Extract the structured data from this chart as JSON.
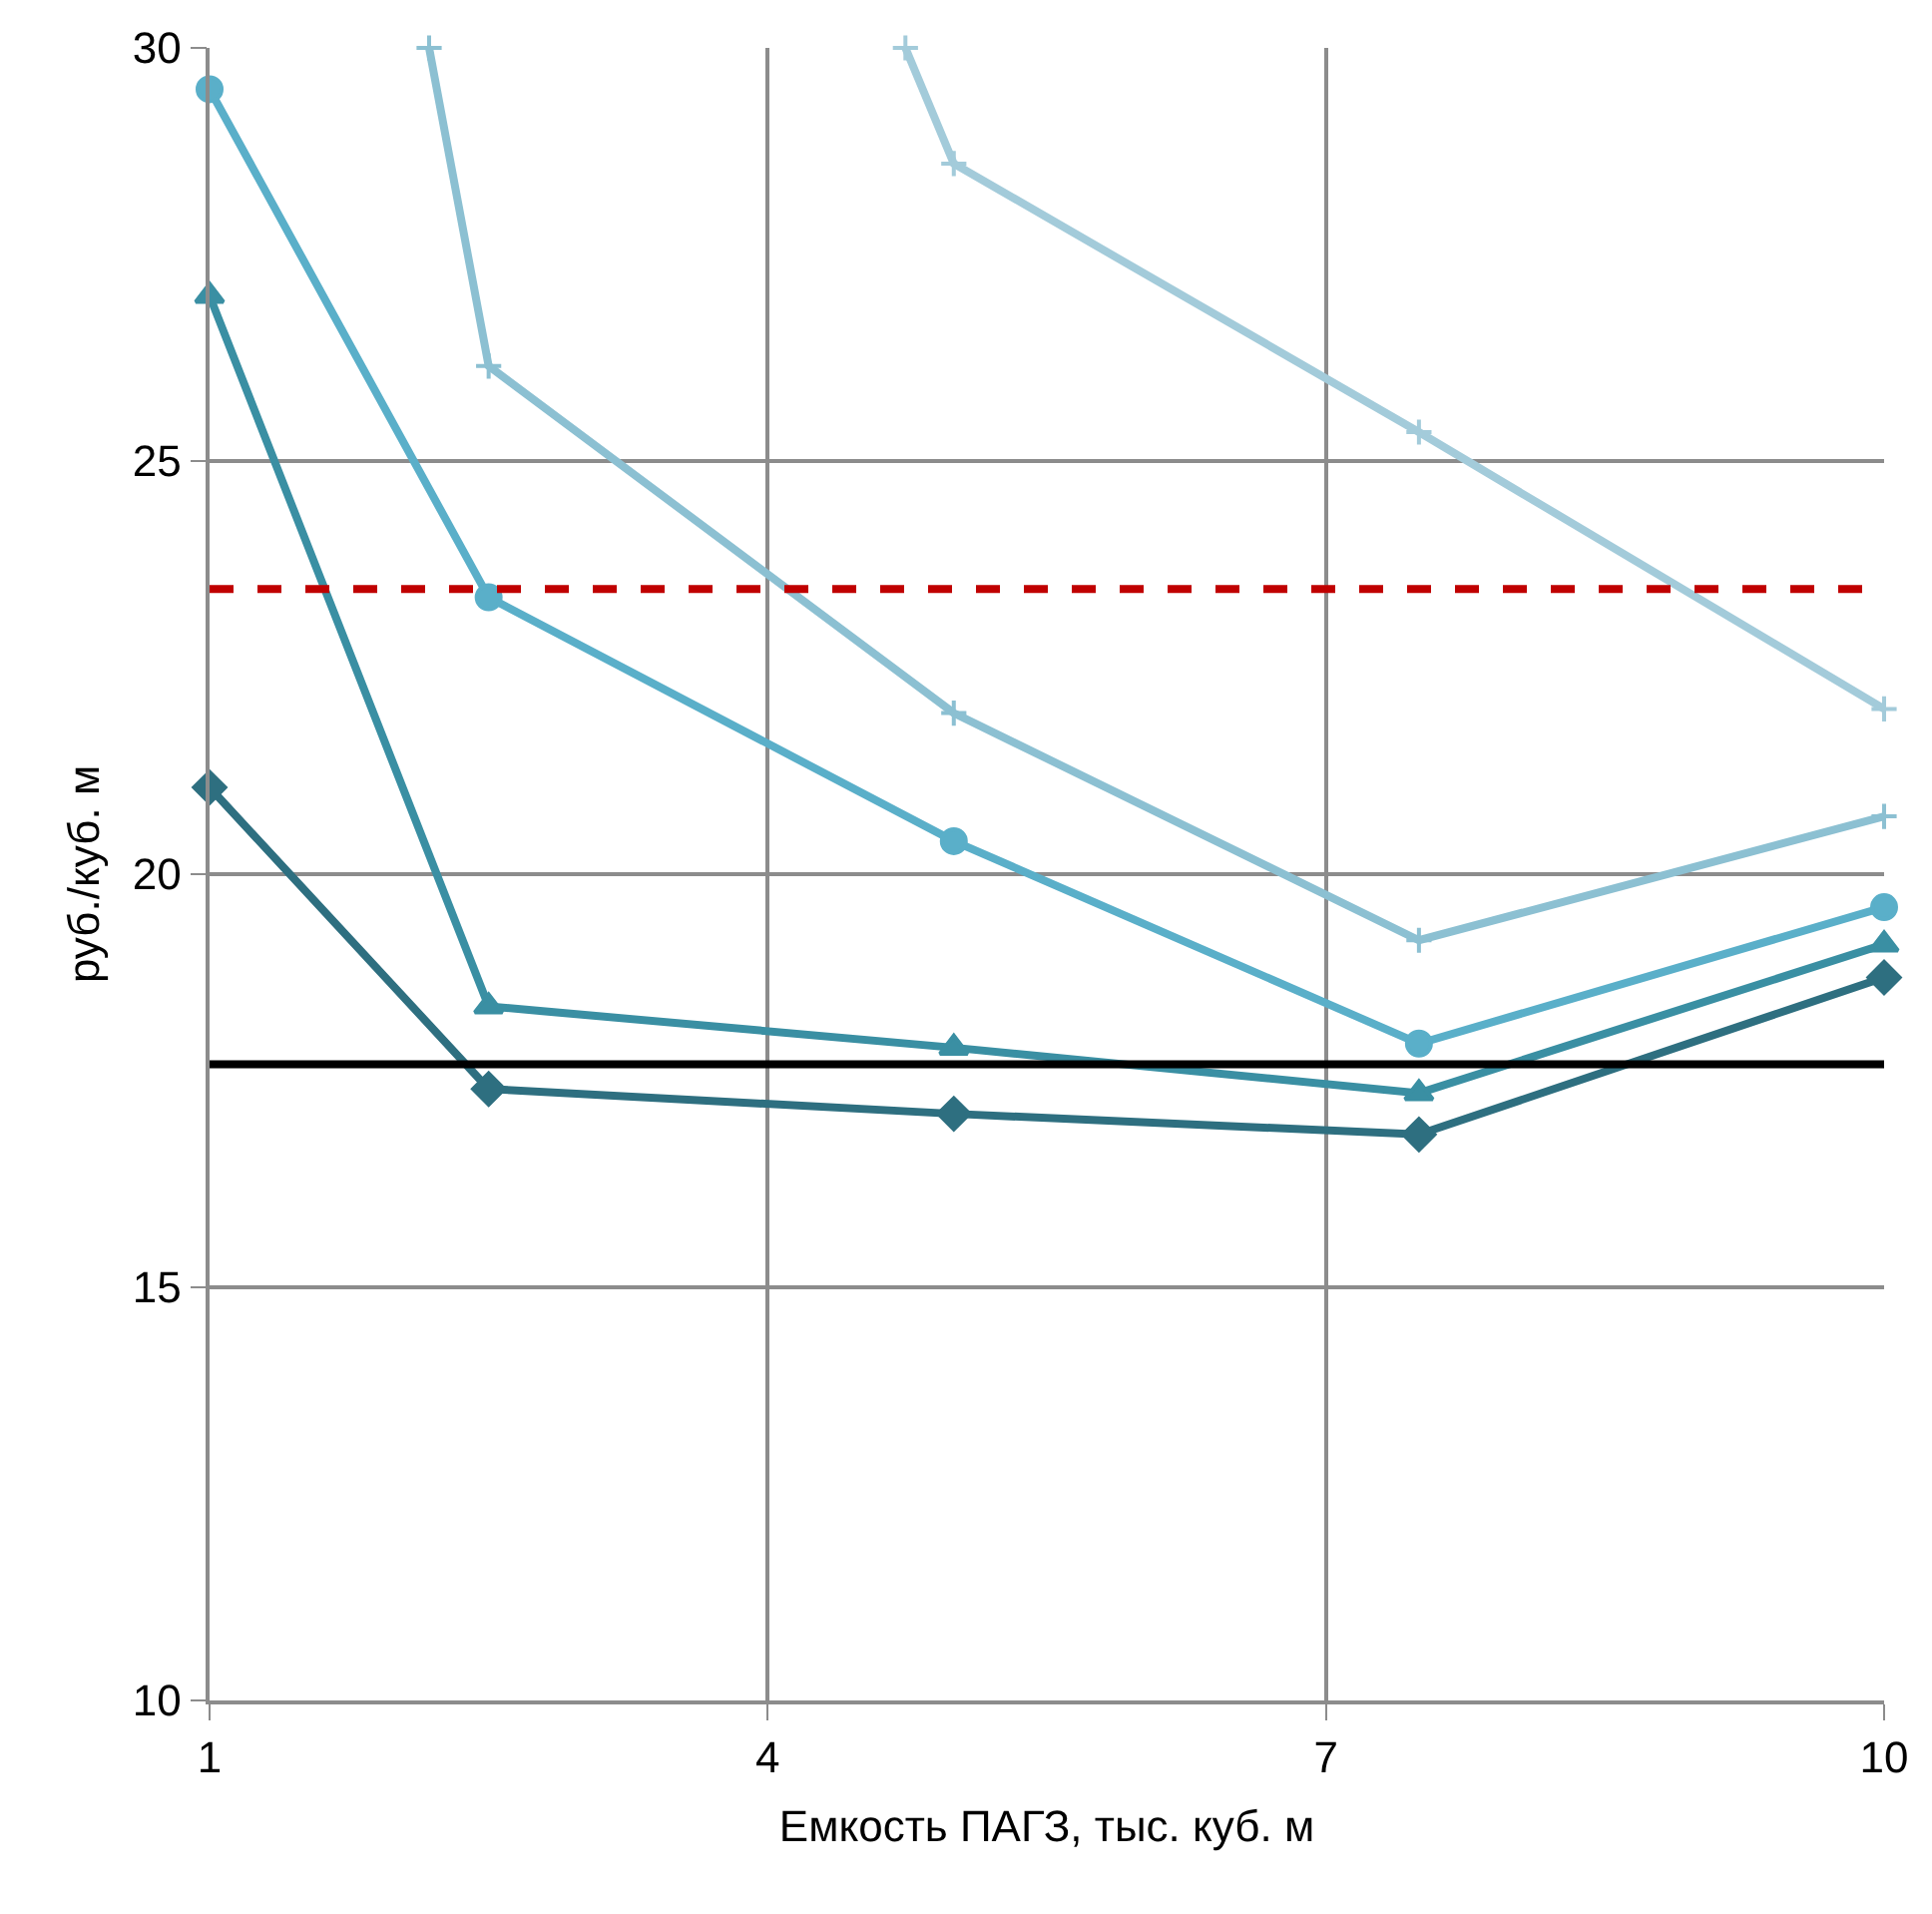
{
  "chart_data": {
    "type": "line",
    "xlabel": "Емкость ПАГЗ, тыс. куб. м",
    "ylabel": "руб./куб. м",
    "xlim": [
      1,
      10
    ],
    "ylim": [
      10,
      30
    ],
    "xticks": [
      1,
      4,
      7,
      10
    ],
    "yticks": [
      10,
      15,
      20,
      25,
      30
    ],
    "grid": true,
    "x": [
      1,
      2.5,
      5,
      7.5,
      10
    ],
    "series": [
      {
        "color": "#2e6f80",
        "marker": "diamond",
        "values": [
          21.05,
          17.4,
          17.1,
          16.85,
          18.75
        ]
      },
      {
        "color": "#3a8fa3",
        "marker": "triangle",
        "values": [
          27,
          18.4,
          17.9,
          17.35,
          19.15
        ]
      },
      {
        "color": "#5aafc9",
        "marker": "circle",
        "values": [
          29.5,
          23.35,
          20.4,
          17.95,
          19.6
        ]
      },
      {
        "color": "#8cc0d2",
        "marker": "cross",
        "x": [
          2.18,
          2.5,
          5,
          7.5,
          10
        ],
        "values": [
          30,
          26.15,
          21.95,
          19.2,
          20.7
        ]
      },
      {
        "color": "#a3cbda",
        "marker": "cross",
        "x": [
          4.74,
          5,
          7.5,
          10
        ],
        "values": [
          30,
          28.6,
          25.35,
          22
        ]
      }
    ],
    "ref_lines": [
      {
        "axis": "y",
        "value": 23.45,
        "color": "#c00000",
        "line_style": "dashed"
      },
      {
        "axis": "y",
        "value": 17.7,
        "color": "#000000",
        "line_style": "solid"
      }
    ]
  }
}
